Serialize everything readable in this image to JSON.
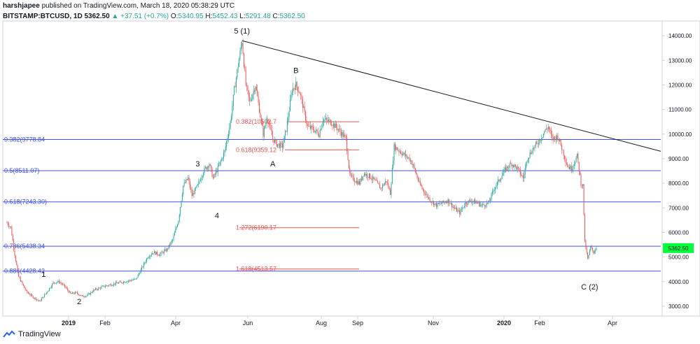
{
  "header": {
    "author": "harshjapee",
    "published_text": "published on TradingView.com, March 18, 2020 05:38:29 UTC",
    "symbol": "BITSTAMP:BTCUSD, 1D",
    "last": "5362.50",
    "change": "+37.51 (+0.7%)",
    "o_label": "O:",
    "o_value": "5340.95",
    "h_label": "H:",
    "h_value": "5452.43",
    "l_label": "L:",
    "l_value": "5291.48",
    "c_label": "C:",
    "c_value": "5362.50"
  },
  "footer": {
    "brand": "TradingView"
  },
  "chart_data": {
    "type": "candlestick",
    "symbol": "BITSTAMP:BTCUSD",
    "interval": "1D",
    "x_ticks": [
      "2019",
      "Feb",
      "Apr",
      "Jun",
      "Aug",
      "Sep",
      "Nov",
      "2020",
      "Feb",
      "Apr"
    ],
    "y_ticks": [
      "14000.00",
      "13000.00",
      "12000.00",
      "11000.00",
      "10000.00",
      "9000.00",
      "8000.00",
      "7000.00",
      "6000.00",
      "5000.00",
      "4000.00",
      "3000.00"
    ],
    "ylim": [
      2600,
      14600
    ],
    "last_price_label": "5362.50",
    "price_path": [
      [
        0,
        6400
      ],
      [
        4,
        6200
      ],
      [
        8,
        5100
      ],
      [
        12,
        4200
      ],
      [
        16,
        3900
      ],
      [
        20,
        3600
      ],
      [
        26,
        3400
      ],
      [
        34,
        3200
      ],
      [
        40,
        3500
      ],
      [
        48,
        3950
      ],
      [
        54,
        4000
      ],
      [
        60,
        3800
      ],
      [
        66,
        3500
      ],
      [
        72,
        3550
      ],
      [
        78,
        3400
      ],
      [
        84,
        3450
      ],
      [
        90,
        3650
      ],
      [
        100,
        3800
      ],
      [
        110,
        3900
      ],
      [
        122,
        4000
      ],
      [
        134,
        4100
      ],
      [
        146,
        5000
      ],
      [
        152,
        5200
      ],
      [
        158,
        5100
      ],
      [
        166,
        5300
      ],
      [
        172,
        5700
      ],
      [
        178,
        6500
      ],
      [
        183,
        7900
      ],
      [
        188,
        8200
      ],
      [
        192,
        7500
      ],
      [
        198,
        7900
      ],
      [
        204,
        8500
      ],
      [
        210,
        8800
      ],
      [
        214,
        8200
      ],
      [
        220,
        8700
      ],
      [
        226,
        9300
      ],
      [
        232,
        10500
      ],
      [
        236,
        11800
      ],
      [
        240,
        12800
      ],
      [
        244,
        13800
      ],
      [
        248,
        12000
      ],
      [
        252,
        11300
      ],
      [
        258,
        12000
      ],
      [
        262,
        11000
      ],
      [
        266,
        10000
      ],
      [
        270,
        10700
      ],
      [
        276,
        9800
      ],
      [
        280,
        9600
      ],
      [
        286,
        9500
      ],
      [
        290,
        10200
      ],
      [
        296,
        11800
      ],
      [
        300,
        12000
      ],
      [
        304,
        11700
      ],
      [
        308,
        11000
      ],
      [
        312,
        10300
      ],
      [
        318,
        10200
      ],
      [
        324,
        10000
      ],
      [
        328,
        10600
      ],
      [
        336,
        10500
      ],
      [
        344,
        10200
      ],
      [
        352,
        9800
      ],
      [
        356,
        8300
      ],
      [
        362,
        8100
      ],
      [
        366,
        8000
      ],
      [
        370,
        8400
      ],
      [
        376,
        8300
      ],
      [
        382,
        8100
      ],
      [
        388,
        7800
      ],
      [
        394,
        8100
      ],
      [
        398,
        7600
      ],
      [
        402,
        9500
      ],
      [
        408,
        9300
      ],
      [
        414,
        9100
      ],
      [
        418,
        9000
      ],
      [
        422,
        8700
      ],
      [
        428,
        8000
      ],
      [
        434,
        7600
      ],
      [
        440,
        7300
      ],
      [
        446,
        7100
      ],
      [
        452,
        7200
      ],
      [
        458,
        7300
      ],
      [
        464,
        7000
      ],
      [
        470,
        6800
      ],
      [
        476,
        7200
      ],
      [
        482,
        7300
      ],
      [
        488,
        7200
      ],
      [
        494,
        7100
      ],
      [
        500,
        7200
      ],
      [
        506,
        7800
      ],
      [
        512,
        8200
      ],
      [
        518,
        8600
      ],
      [
        524,
        8800
      ],
      [
        530,
        8600
      ],
      [
        536,
        8200
      ],
      [
        540,
        9000
      ],
      [
        546,
        9400
      ],
      [
        552,
        9700
      ],
      [
        558,
        10100
      ],
      [
        562,
        10300
      ],
      [
        566,
        9800
      ],
      [
        572,
        9900
      ],
      [
        578,
        9200
      ],
      [
        582,
        8700
      ],
      [
        586,
        8600
      ],
      [
        592,
        9100
      ],
      [
        596,
        8000
      ],
      [
        598,
        7900
      ],
      [
        600,
        5600
      ],
      [
        603,
        4900
      ],
      [
        606,
        5400
      ],
      [
        609,
        5200
      ],
      [
        612,
        5360
      ]
    ],
    "fib_lines_blue": [
      {
        "label": "0.382(9778.84",
        "price": 9778.84
      },
      {
        "label": "0.5(8511.07)",
        "price": 8511.07
      },
      {
        "label": "0.618(7243.30)",
        "price": 7243.3
      },
      {
        "label": "0.786(5438.34",
        "price": 5438.34
      },
      {
        "label": "0.886(4428.42",
        "price": 4428.42
      }
    ],
    "fib_lines_red": [
      {
        "label": "0.382(10502.7",
        "price": 10502.7
      },
      {
        "label": "0.618(9359.12",
        "price": 9359.12
      },
      {
        "label": "1.272(6190.17",
        "price": 6190.17
      },
      {
        "label": "1.618(4513.57",
        "price": 4513.57
      }
    ],
    "trendline": {
      "from_price": 13800,
      "to_price": 9300
    },
    "wave_labels": [
      {
        "text": "1",
        "near_price": 4300
      },
      {
        "text": "2",
        "near_price": 3200
      },
      {
        "text": "3",
        "near_price": 8800
      },
      {
        "text": "4",
        "near_price": 6700
      },
      {
        "text": "5 (1)",
        "near_price": 14200
      },
      {
        "text": "A",
        "near_price": 8800
      },
      {
        "text": "B",
        "near_price": 12600
      },
      {
        "text": "C (2)",
        "near_price": 3800
      }
    ],
    "colors": {
      "up": "#26a69a",
      "down": "#ef5350",
      "fib_blue": "#3f51f5",
      "fib_red": "#ef5350",
      "last_price_bg": "#00ff3c"
    }
  }
}
